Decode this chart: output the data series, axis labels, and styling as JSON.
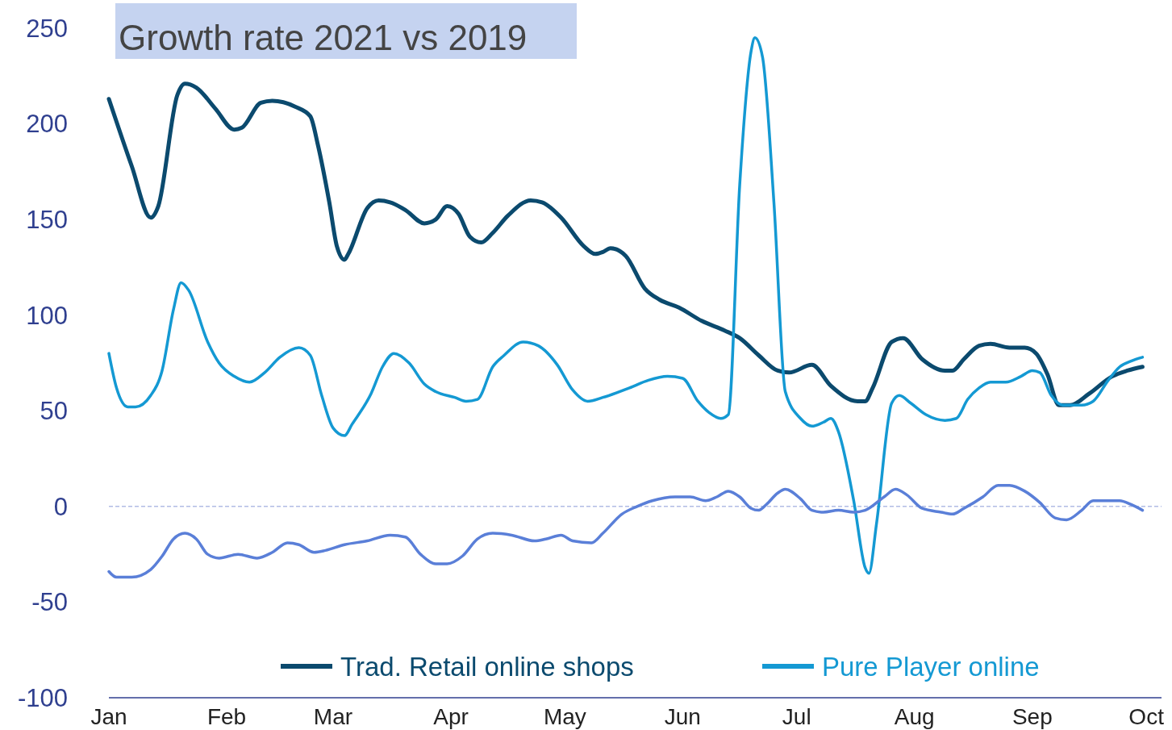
{
  "chart_data": {
    "type": "line",
    "title": "Growth rate 2021 vs 2019",
    "xlim": [
      "--01-01",
      "--10-05"
    ],
    "xticks": [
      {
        "value": "--01-01",
        "label": "Jan"
      },
      {
        "value": "--02-01",
        "label": "Feb"
      },
      {
        "value": "--03-01",
        "label": "Mar"
      },
      {
        "value": "--04-01",
        "label": "Apr"
      },
      {
        "value": "--05-01",
        "label": "May"
      },
      {
        "value": "--06-01",
        "label": "Jun"
      },
      {
        "value": "--07-01",
        "label": "Jul"
      },
      {
        "value": "--08-01",
        "label": "Aug"
      },
      {
        "value": "--09-01",
        "label": "Sep"
      },
      {
        "value": "--10-01",
        "label": "Oct"
      }
    ],
    "ylim": [
      -100,
      250
    ],
    "yticks": [
      -100,
      -50,
      0,
      50,
      100,
      150,
      200,
      250
    ],
    "grid": false,
    "legend": "bottom",
    "marker": "none",
    "line_style": "solid",
    "ref_lines": [
      {
        "axis": "y",
        "value": 0,
        "color": "#8a9bd6",
        "line_style": "dashed"
      }
    ],
    "series": [
      {
        "name": "Trad. Retail online shops",
        "color": "#0b4a6e",
        "x": [
          "--01-01",
          "--01-07",
          "--01-12",
          "--01-14",
          "--01-19",
          "--01-21",
          "--01-24",
          "--01-29",
          "--02-03",
          "--02-05",
          "--02-10",
          "--02-13",
          "--02-19",
          "--02-23",
          "--02-25",
          "--02-28",
          "--03-02",
          "--03-04",
          "--03-05",
          "--03-10",
          "--03-13",
          "--03-16",
          "--03-20",
          "--03-25",
          "--03-28",
          "--03-31",
          "--04-03",
          "--04-06",
          "--04-09",
          "--04-12",
          "--04-16",
          "--04-22",
          "--04-25",
          "--04-30",
          "--05-06",
          "--05-09",
          "--05-11",
          "--05-13",
          "--05-17",
          "--05-22",
          "--05-26",
          "--05-31",
          "--06-06",
          "--06-12",
          "--06-16",
          "--06-21",
          "--06-26",
          "--06-29",
          "--07-05",
          "--07-10",
          "--07-17",
          "--07-19",
          "--07-21",
          "--07-26",
          "--07-29",
          "--08-03",
          "--08-09",
          "--08-11",
          "--08-14",
          "--08-18",
          "--08-21",
          "--08-26",
          "--08-30",
          "--09-02",
          "--09-05",
          "--09-08",
          "--09-11",
          "--09-16",
          "--09-22",
          "--09-26",
          "--09-30"
        ],
        "values": [
          213,
          178,
          151,
          157,
          215,
          221,
          219,
          208,
          197,
          198,
          211,
          212,
          209,
          204,
          189,
          159,
          136,
          129,
          132,
          156,
          160,
          159,
          155,
          148,
          150,
          157,
          153,
          141,
          138,
          143,
          152,
          160,
          159,
          151,
          136,
          132,
          133,
          135,
          131,
          114,
          108,
          104,
          97,
          92,
          88,
          79,
          71,
          70,
          74,
          63,
          55,
          55,
          62,
          86,
          88,
          77,
          71,
          71,
          77,
          84,
          85,
          83,
          83,
          80,
          69,
          53,
          53,
          59,
          68,
          71,
          73
        ]
      },
      {
        "name": "Pure Player online",
        "color": "#1499d3",
        "x": [
          "--01-01",
          "--01-03",
          "--01-06",
          "--01-08",
          "--01-12",
          "--01-15",
          "--01-18",
          "--01-20",
          "--01-22",
          "--01-27",
          "--01-30",
          "--02-03",
          "--02-07",
          "--02-11",
          "--02-15",
          "--02-20",
          "--02-23",
          "--02-26",
          "--03-01",
          "--03-04",
          "--03-06",
          "--03-11",
          "--03-14",
          "--03-17",
          "--03-21",
          "--03-25",
          "--03-28",
          "--04-02",
          "--04-05",
          "--04-08",
          "--04-12",
          "--04-15",
          "--04-20",
          "--04-24",
          "--04-29",
          "--05-03",
          "--05-07",
          "--05-11",
          "--05-18",
          "--05-23",
          "--05-28",
          "--06-01",
          "--06-05",
          "--06-08",
          "--06-11",
          "--06-13",
          "--06-16",
          "--06-19",
          "--06-20",
          "--06-22",
          "--06-25",
          "--06-28",
          "--07-02",
          "--07-05",
          "--07-08",
          "--07-10",
          "--07-12",
          "--07-16",
          "--07-19",
          "--07-20",
          "--07-22",
          "--07-26",
          "--07-28",
          "--07-31",
          "--08-04",
          "--08-09",
          "--08-12",
          "--08-15",
          "--08-18",
          "--08-21",
          "--08-25",
          "--08-29",
          "--09-01",
          "--09-03",
          "--09-06",
          "--09-09",
          "--09-14",
          "--09-17",
          "--09-21",
          "--09-24",
          "--09-27",
          "--09-30"
        ],
        "values": [
          80,
          62,
          52,
          52,
          58,
          71,
          103,
          117,
          113,
          86,
          75,
          68,
          65,
          70,
          78,
          83,
          79,
          58,
          41,
          37,
          43,
          59,
          73,
          80,
          75,
          64,
          60,
          57,
          55,
          56,
          73,
          79,
          86,
          84,
          74,
          61,
          55,
          57,
          62,
          66,
          68,
          67,
          55,
          49,
          46,
          48,
          168,
          238,
          245,
          235,
          159,
          60,
          46,
          42,
          44,
          46,
          39,
          3,
          -32,
          -35,
          -9,
          54,
          58,
          54,
          48,
          45,
          46,
          56,
          62,
          65,
          65,
          68,
          71,
          70,
          58,
          53,
          53,
          55,
          66,
          73,
          76,
          78
        ]
      },
      {
        "color": "#5a7fd8",
        "x": [
          "--01-01",
          "--01-03",
          "--01-07",
          "--01-12",
          "--01-15",
          "--01-18",
          "--01-21",
          "--01-24",
          "--01-27",
          "--01-30",
          "--02-04",
          "--02-09",
          "--02-13",
          "--02-17",
          "--02-20",
          "--02-24",
          "--02-27",
          "--03-04",
          "--03-10",
          "--03-16",
          "--03-20",
          "--03-24",
          "--03-28",
          "--03-31",
          "--04-04",
          "--04-08",
          "--04-12",
          "--04-17",
          "--04-23",
          "--04-26",
          "--04-30",
          "--05-03",
          "--05-08",
          "--05-11",
          "--05-16",
          "--05-20",
          "--05-24",
          "--05-30",
          "--06-03",
          "--06-07",
          "--06-10",
          "--06-13",
          "--06-16",
          "--06-19",
          "--06-21",
          "--06-23",
          "--06-26",
          "--06-28",
          "--07-02",
          "--07-05",
          "--07-08",
          "--07-12",
          "--07-16",
          "--07-19",
          "--07-24",
          "--07-27",
          "--07-30",
          "--08-03",
          "--08-08",
          "--08-11",
          "--08-14",
          "--08-19",
          "--08-23",
          "--08-26",
          "--08-30",
          "--09-03",
          "--09-07",
          "--09-10",
          "--09-14",
          "--09-17",
          "--09-20",
          "--09-24",
          "--09-27",
          "--09-30"
        ],
        "values": [
          -34,
          -37,
          -37,
          -33,
          -26,
          -17,
          -14,
          -17,
          -25,
          -27,
          -25,
          -27,
          -24,
          -19,
          -20,
          -24,
          -23,
          -20,
          -18,
          -15,
          -16,
          -25,
          -30,
          -30,
          -26,
          -17,
          -14,
          -15,
          -18,
          -17,
          -15,
          -18,
          -19,
          -14,
          -4,
          0,
          3,
          5,
          5,
          3,
          5,
          8,
          5,
          -1,
          -2,
          1,
          7,
          9,
          4,
          -2,
          -3,
          -2,
          -3,
          -2,
          5,
          9,
          6,
          -1,
          -3,
          -4,
          -1,
          5,
          11,
          11,
          8,
          2,
          -6,
          -7,
          -2,
          3,
          3,
          3,
          1,
          -2
        ]
      }
    ]
  }
}
